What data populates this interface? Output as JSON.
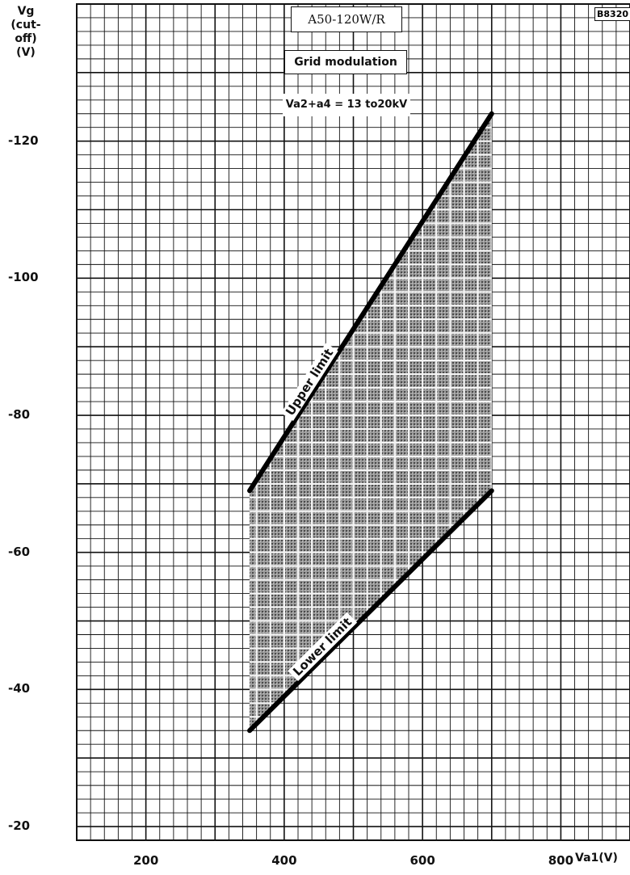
{
  "chart_data": {
    "type": "area",
    "title_box": "A50-120W/R",
    "subtitle_box": "Grid modulation",
    "condition_box": "Va2+a4 = 13 to20kV",
    "figure_code": "B8320",
    "ylabel_lines": [
      "Vg",
      "(cut-off)",
      "(V)"
    ],
    "xlabel": "Va1(V)",
    "xlim": [
      100,
      900
    ],
    "ylim": [
      -18,
      -140
    ],
    "y_ticks": [
      -120,
      -100,
      -80,
      -60,
      -40,
      -20
    ],
    "y_tick_labels": [
      "-120",
      "-100",
      "-80",
      "-60",
      "-40",
      "-20"
    ],
    "x_ticks": [
      200,
      400,
      600,
      800
    ],
    "x_tick_labels": [
      "200",
      "400",
      "600",
      "800"
    ],
    "grid": true,
    "series": [
      {
        "name": "Upper limit",
        "x": [
          350,
          700
        ],
        "y": [
          -69,
          -124
        ]
      },
      {
        "name": "Lower limit",
        "x": [
          350,
          700
        ],
        "y": [
          -34,
          -69
        ]
      }
    ],
    "shaded_region": {
      "x": [
        350,
        700,
        700,
        350
      ],
      "y": [
        -69,
        -124,
        -69,
        -34
      ]
    }
  }
}
